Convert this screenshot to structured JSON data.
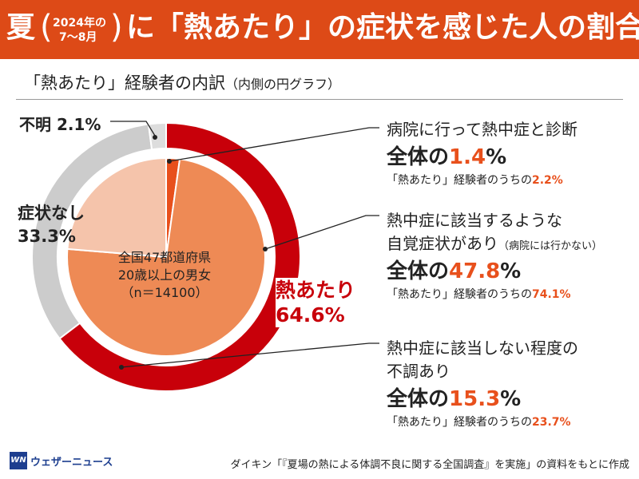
{
  "header": {
    "title_left": "夏",
    "title_sub_line1": "2024年の",
    "title_sub_line2": "7～8月",
    "title_right": "に「熱あたり」の症状を感じた人の割合",
    "paren_open": "(",
    "paren_close": ")",
    "bg_color": "#dd4a17"
  },
  "subheader": {
    "title": "「熱あたり」経験者の内訳",
    "note": "（内側の円グラフ）"
  },
  "center_text": {
    "line1": "全国47都道府県",
    "line2": "20歳以上の男女",
    "line3": "（n＝14100）"
  },
  "outer_labels": {
    "unknown_name": "不明",
    "unknown_value": "2.1%",
    "none_name": "症状なし",
    "none_value": "33.3%",
    "heat_name": "熱あたり",
    "heat_value": "64.6%"
  },
  "annotations": [
    {
      "title": "病院に行って熱中症と診断",
      "total_prefix": "全体の",
      "total_value": "1.4",
      "total_unit": "%",
      "share_prefix": "「熱あたり」経験者のうちの",
      "share_value": "2.2%"
    },
    {
      "title": "熱中症に該当するような",
      "title2": "自覚症状があり",
      "title2_note": "（病院には行かない）",
      "total_prefix": "全体の",
      "total_value": "47.8",
      "total_unit": "%",
      "share_prefix": "「熱あたり」経験者のうちの",
      "share_value": "74.1%"
    },
    {
      "title": "熱中症に該当しない程度の",
      "title2": "不調あり",
      "total_prefix": "全体の",
      "total_value": "15.3",
      "total_unit": "%",
      "share_prefix": "「熱あたり」経験者のうちの",
      "share_value": "23.7%"
    }
  ],
  "footer": {
    "logo_mark": "WN",
    "logo_text": "ウェザーニュース",
    "source": "ダイキン「『夏場の熱による体調不良に関する全国調査』を実施」の資料をもとに作成"
  },
  "chart_data": [
    {
      "type": "pie",
      "ring": "outer",
      "categories": [
        "熱あたり",
        "症状なし",
        "不明"
      ],
      "values": [
        64.6,
        33.3,
        2.1
      ],
      "colors": [
        "#c8000a",
        "#cccccc",
        "#dddddd"
      ]
    },
    {
      "type": "pie",
      "ring": "inner",
      "categories": [
        "病院に行って熱中症と診断",
        "熱中症に該当するような自覚症状があり（病院には行かない）",
        "熱中症に該当しない程度の不調あり"
      ],
      "values": [
        2.2,
        74.1,
        23.7
      ],
      "colors": [
        "#e8501c",
        "#ee8a55",
        "#f5c4ab"
      ]
    }
  ]
}
